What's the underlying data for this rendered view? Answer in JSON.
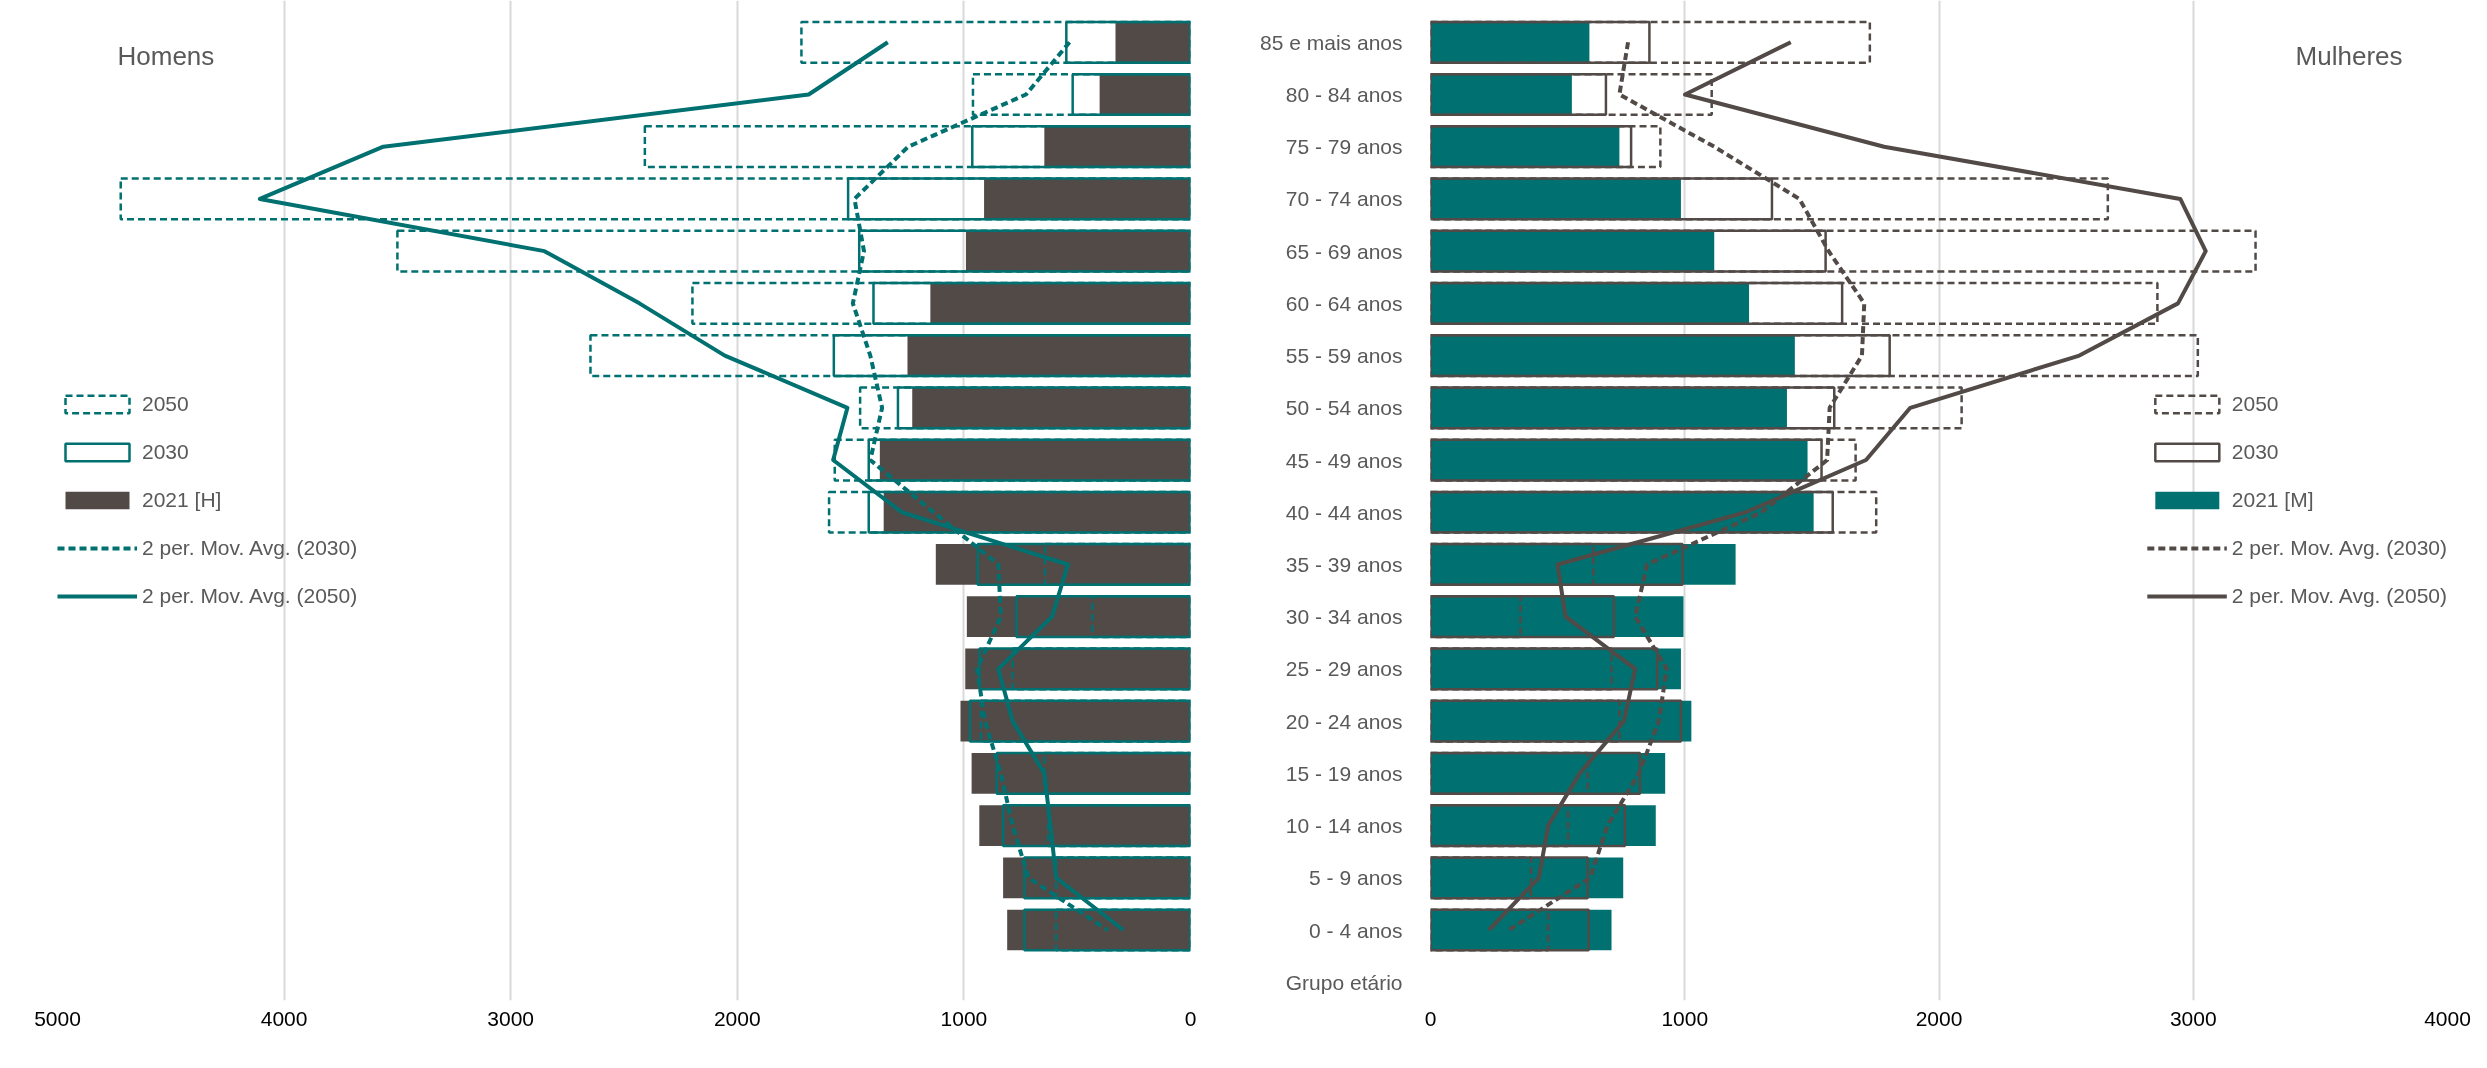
{
  "chart_data": [
    {
      "type": "bar",
      "orientation": "horizontal",
      "title": "Homens",
      "categories": [
        null,
        null,
        null,
        null,
        null,
        null,
        null,
        null,
        null,
        null,
        null,
        null,
        null,
        null,
        null,
        null,
        null,
        null
      ],
      "xlim": [
        5000,
        0
      ],
      "xticks": [
        5000,
        4000,
        3000,
        2000,
        1000,
        0
      ],
      "grid": "x",
      "legend": "left",
      "tick_labels": "x",
      "series": [
        {
          "name": "2050",
          "color": "#007070",
          "line_style": "dashed",
          "values": [
            1717,
            960,
            2408,
            4721,
            3500,
            2198,
            2648,
            1458,
            1570,
            1595,
            642,
            433,
            785,
            925,
            645,
            628,
            593,
            593
          ]
        },
        {
          "name": "2030",
          "color": "#007070",
          "line_style": "solid",
          "values": [
            548,
            520,
            963,
            1511,
            1462,
            1399,
            1574,
            1291,
            1420,
            1420,
            939,
            768,
            931,
            973,
            855,
            827,
            733,
            733
          ]
        },
        {
          "name": "2021 [H]",
          "color": "#524a47",
          "values": [
            331,
            401,
            645,
            911,
            991,
            1148,
            1249,
            1228,
            1371,
            1354,
            1124,
            987,
            994,
            1015,
            966,
            932,
            827,
            809
          ]
        },
        {
          "name": "2 per. Mov. Avg. (2030)",
          "type": "line",
          "color": "#007070",
          "line_style": "dashed",
          "marker": "none",
          "values": [
            534,
            726,
            1246,
            1483,
            1441,
            1490,
            1413,
            1361,
            1413,
            1134,
            848,
            837,
            942,
            907,
            837,
            785,
            715,
            366
          ]
        },
        {
          "name": "2 per. Mov. Avg. (2050)",
          "type": "line",
          "color": "#007070",
          "line_style": "solid",
          "marker": "none",
          "values": [
            1336,
            1685,
            3562,
            4107,
            2851,
            2432,
            2055,
            1514,
            1577,
            1274,
            541,
            611,
            848,
            785,
            645,
            618,
            593,
            297
          ]
        }
      ]
    },
    {
      "type": "bar",
      "orientation": "horizontal",
      "title": "Mulheres",
      "ylabel": "Grupo etário",
      "categories": [
        "85 e mais anos",
        "80 - 84 anos",
        "75 - 79 anos",
        "70 - 74 anos",
        "65 - 69 anos",
        "60 - 64 anos",
        "55 - 59 anos",
        "50 - 54 anos",
        "45 - 49 anos",
        "40 - 44 anos",
        "35 - 39 anos",
        "30 - 34 anos",
        "25 - 29 anos",
        "20 - 24 anos",
        "15 - 19 anos",
        "10 - 14 anos",
        "5 - 9 anos",
        "0 - 4 anos"
      ],
      "xlim": [
        0,
        4000
      ],
      "xticks": [
        0,
        1000,
        2000,
        3000,
        4000
      ],
      "grid": "x",
      "legend": "right",
      "series": [
        {
          "name": "2050",
          "color": "#524a47",
          "line_style": "dashed",
          "values": [
            1728,
            1106,
            904,
            2664,
            3245,
            2859,
            3018,
            2089,
            1672,
            1753,
            640,
            354,
            712,
            743,
            618,
            541,
            395,
            463
          ]
        },
        {
          "name": "2030",
          "color": "#524a47",
          "line_style": "solid",
          "values": [
            861,
            690,
            789,
            1343,
            1554,
            1619,
            1806,
            1588,
            1538,
            1582,
            991,
            721,
            892,
            985,
            824,
            765,
            618,
            622
          ]
        },
        {
          "name": "2021 [M]",
          "color": "#007070",
          "values": [
            625,
            556,
            743,
            985,
            1116,
            1253,
            1433,
            1402,
            1483,
            1507,
            1200,
            995,
            985,
            1026,
            923,
            886,
            758,
            712
          ]
        },
        {
          "name": "2 per. Mov. Avg. (2030)",
          "type": "line",
          "color": "#524a47",
          "line_style": "dashed",
          "marker": "none",
          "values": [
            777,
            743,
            1116,
            1451,
            1566,
            1706,
            1697,
            1570,
            1560,
            1302,
            852,
            805,
            929,
            898,
            820,
            696,
            628,
            308
          ]
        },
        {
          "name": "2 per. Mov. Avg. (2050)",
          "type": "line",
          "color": "#524a47",
          "line_style": "solid",
          "marker": "none",
          "values": [
            1417,
            1001,
            1784,
            2949,
            3049,
            2940,
            2552,
            1887,
            1713,
            1240,
            500,
            531,
            805,
            761,
            587,
            463,
            426,
            230
          ]
        }
      ]
    }
  ]
}
